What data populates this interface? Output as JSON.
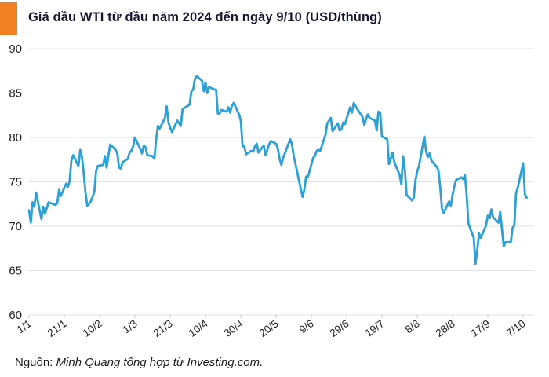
{
  "header": {
    "title": "Giá dầu WTI từ đầu năm 2024 đến ngày 9/10 (USD/thùng)",
    "accent_color": "#F28123"
  },
  "footer": {
    "source_prefix": "Nguồn: ",
    "source_credit": "Minh Quang tổng hợp từ Investing.com."
  },
  "chart_data": {
    "type": "line",
    "title": "Giá dầu WTI từ đầu năm 2024 đến ngày 9/10 (USD/thùng)",
    "unit": "USD/thùng",
    "line_color": "#2BA0D9",
    "grid_color": "#E2E2E2",
    "tick_color": "#C9C9C9",
    "label_color": "#1F1F1F",
    "grid": "horizontal",
    "legend": "none",
    "ylim": [
      60,
      90
    ],
    "yticks": [
      60,
      65,
      70,
      75,
      80,
      85,
      90
    ],
    "xtick_labels": [
      "1/1",
      "21/1",
      "10/2",
      "1/3",
      "21/3",
      "10/4",
      "30/4",
      "20/5",
      "9/6",
      "29/6",
      "19/7",
      "8/8",
      "28/8",
      "17/9",
      "7/10"
    ],
    "xtick_interval_days": 20,
    "x_is_day_offset_from": "1/1/2024",
    "series": [
      {
        "name": "WTI (USD/thùng)",
        "points": [
          [
            0,
            71.8
          ],
          [
            1,
            70.4
          ],
          [
            2,
            72.7
          ],
          [
            3,
            72.2
          ],
          [
            4,
            73.8
          ],
          [
            7,
            70.8
          ],
          [
            8,
            72.2
          ],
          [
            9,
            71.4
          ],
          [
            10,
            72.0
          ],
          [
            11,
            72.7
          ],
          [
            15,
            72.4
          ],
          [
            16,
            72.6
          ],
          [
            17,
            74.1
          ],
          [
            18,
            73.4
          ],
          [
            21,
            74.8
          ],
          [
            22,
            74.4
          ],
          [
            23,
            75.1
          ],
          [
            24,
            77.4
          ],
          [
            25,
            78.0
          ],
          [
            28,
            76.8
          ],
          [
            29,
            78.6
          ],
          [
            30,
            77.8
          ],
          [
            31,
            75.9
          ],
          [
            32,
            73.8
          ],
          [
            33,
            72.3
          ],
          [
            35,
            72.8
          ],
          [
            36,
            73.3
          ],
          [
            37,
            73.9
          ],
          [
            38,
            76.2
          ],
          [
            39,
            76.8
          ],
          [
            42,
            76.9
          ],
          [
            43,
            77.9
          ],
          [
            44,
            76.6
          ],
          [
            45,
            78.0
          ],
          [
            46,
            79.2
          ],
          [
            49,
            78.6
          ],
          [
            50,
            78.2
          ],
          [
            51,
            76.6
          ],
          [
            52,
            76.5
          ],
          [
            53,
            77.2
          ],
          [
            56,
            77.6
          ],
          [
            57,
            78.3
          ],
          [
            58,
            78.5
          ],
          [
            59,
            79.0
          ],
          [
            60,
            80.0
          ],
          [
            63,
            78.7
          ],
          [
            64,
            78.2
          ],
          [
            65,
            79.1
          ],
          [
            66,
            78.9
          ],
          [
            67,
            78.0
          ],
          [
            70,
            77.9
          ],
          [
            71,
            77.6
          ],
          [
            72,
            79.7
          ],
          [
            73,
            81.3
          ],
          [
            74,
            81.0
          ],
          [
            77,
            82.2
          ],
          [
            78,
            83.5
          ],
          [
            79,
            81.7
          ],
          [
            80,
            81.1
          ],
          [
            81,
            80.6
          ],
          [
            84,
            81.9
          ],
          [
            85,
            81.6
          ],
          [
            86,
            81.3
          ],
          [
            87,
            83.2
          ],
          [
            91,
            83.7
          ],
          [
            92,
            85.2
          ],
          [
            93,
            85.4
          ],
          [
            94,
            86.6
          ],
          [
            95,
            86.9
          ],
          [
            98,
            86.4
          ],
          [
            99,
            85.2
          ],
          [
            100,
            86.2
          ],
          [
            101,
            85.0
          ],
          [
            102,
            85.7
          ],
          [
            105,
            85.4
          ],
          [
            106,
            85.4
          ],
          [
            107,
            82.7
          ],
          [
            108,
            82.7
          ],
          [
            109,
            83.1
          ],
          [
            112,
            82.9
          ],
          [
            113,
            83.4
          ],
          [
            114,
            82.8
          ],
          [
            115,
            83.6
          ],
          [
            116,
            83.9
          ],
          [
            119,
            82.6
          ],
          [
            120,
            81.9
          ],
          [
            121,
            79.0
          ],
          [
            122,
            79.0
          ],
          [
            123,
            78.1
          ],
          [
            126,
            78.5
          ],
          [
            127,
            78.4
          ],
          [
            128,
            79.0
          ],
          [
            129,
            79.3
          ],
          [
            130,
            78.3
          ],
          [
            133,
            79.1
          ],
          [
            134,
            78.0
          ],
          [
            135,
            78.6
          ],
          [
            136,
            79.2
          ],
          [
            137,
            79.6
          ],
          [
            140,
            79.3
          ],
          [
            141,
            78.7
          ],
          [
            142,
            77.6
          ],
          [
            143,
            76.9
          ],
          [
            144,
            77.7
          ],
          [
            148,
            79.8
          ],
          [
            149,
            79.2
          ],
          [
            150,
            77.9
          ],
          [
            151,
            77.0
          ],
          [
            154,
            74.2
          ],
          [
            155,
            73.3
          ],
          [
            156,
            74.1
          ],
          [
            157,
            75.6
          ],
          [
            158,
            75.5
          ],
          [
            161,
            77.7
          ],
          [
            162,
            77.9
          ],
          [
            163,
            78.5
          ],
          [
            164,
            78.6
          ],
          [
            165,
            78.5
          ],
          [
            168,
            80.3
          ],
          [
            169,
            81.6
          ],
          [
            171,
            82.2
          ],
          [
            172,
            80.7
          ],
          [
            175,
            81.6
          ],
          [
            176,
            80.8
          ],
          [
            177,
            80.9
          ],
          [
            178,
            81.7
          ],
          [
            179,
            81.5
          ],
          [
            182,
            83.4
          ],
          [
            183,
            82.8
          ],
          [
            184,
            83.9
          ],
          [
            186,
            83.2
          ],
          [
            189,
            82.3
          ],
          [
            190,
            81.4
          ],
          [
            191,
            82.1
          ],
          [
            192,
            82.6
          ],
          [
            193,
            82.2
          ],
          [
            196,
            81.9
          ],
          [
            197,
            80.8
          ],
          [
            198,
            82.9
          ],
          [
            199,
            82.8
          ],
          [
            200,
            80.1
          ],
          [
            203,
            79.8
          ],
          [
            204,
            77.0
          ],
          [
            205,
            77.6
          ],
          [
            206,
            78.3
          ],
          [
            207,
            77.2
          ],
          [
            210,
            75.8
          ],
          [
            211,
            74.7
          ],
          [
            212,
            77.9
          ],
          [
            213,
            76.3
          ],
          [
            214,
            73.5
          ],
          [
            217,
            72.9
          ],
          [
            218,
            73.2
          ],
          [
            219,
            75.2
          ],
          [
            220,
            76.2
          ],
          [
            221,
            76.8
          ],
          [
            224,
            80.1
          ],
          [
            225,
            78.4
          ],
          [
            226,
            77.8
          ],
          [
            227,
            78.2
          ],
          [
            228,
            77.4
          ],
          [
            231,
            76.7
          ],
          [
            232,
            76.3
          ],
          [
            233,
            74.4
          ],
          [
            234,
            72.0
          ],
          [
            235,
            71.5
          ],
          [
            238,
            72.8
          ],
          [
            239,
            72.3
          ],
          [
            240,
            73.5
          ],
          [
            241,
            74.5
          ],
          [
            242,
            75.2
          ],
          [
            245,
            75.5
          ],
          [
            246,
            75.3
          ],
          [
            247,
            75.8
          ],
          [
            248,
            73.5
          ],
          [
            249,
            70.3
          ],
          [
            252,
            68.7
          ],
          [
            253,
            65.75
          ],
          [
            254,
            67.3
          ],
          [
            255,
            69.2
          ],
          [
            256,
            68.7
          ],
          [
            259,
            70.1
          ],
          [
            260,
            71.2
          ],
          [
            261,
            70.9
          ],
          [
            262,
            71.9
          ],
          [
            263,
            71.0
          ],
          [
            266,
            70.4
          ],
          [
            267,
            71.6
          ],
          [
            268,
            69.7
          ],
          [
            269,
            67.7
          ],
          [
            270,
            68.2
          ],
          [
            273,
            68.2
          ],
          [
            274,
            69.8
          ],
          [
            275,
            70.1
          ],
          [
            276,
            73.7
          ],
          [
            277,
            74.4
          ],
          [
            280,
            77.1
          ],
          [
            281,
            73.6
          ],
          [
            282,
            73.2
          ]
        ]
      }
    ]
  }
}
